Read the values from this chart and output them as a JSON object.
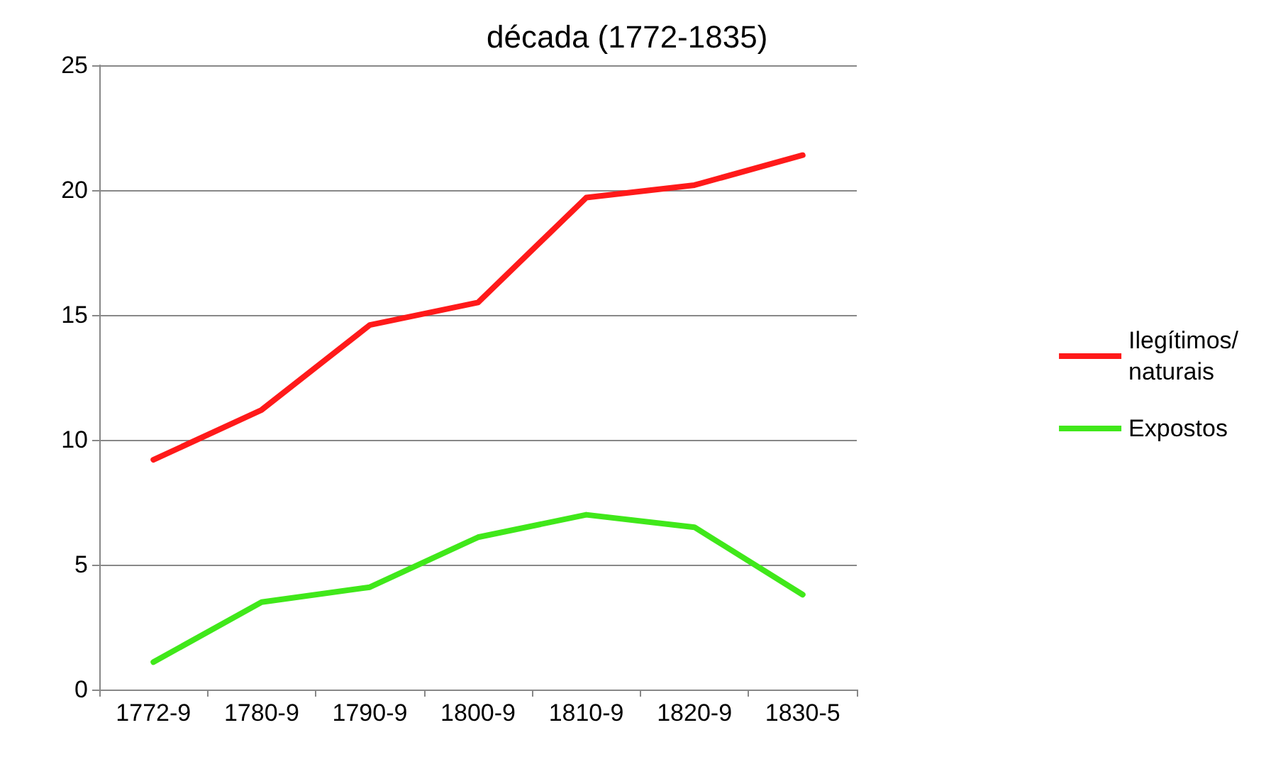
{
  "chart_data": {
    "type": "line",
    "title": "década (1772-1835)",
    "categories": [
      "1772-9",
      "1780-9",
      "1790-9",
      "1800-9",
      "1810-9",
      "1820-9",
      "1830-5"
    ],
    "series": [
      {
        "name": "Ilegítimos/\nnaturais",
        "color": "#ff1a1a",
        "values": [
          9.2,
          11.2,
          14.6,
          15.5,
          19.7,
          20.2,
          21.4
        ]
      },
      {
        "name": "Expostos",
        "color": "#40e81a",
        "values": [
          1.1,
          3.5,
          4.1,
          6.1,
          7.0,
          6.5,
          3.8
        ]
      }
    ],
    "ylim": [
      0,
      25
    ],
    "yticks": [
      0,
      5,
      10,
      15,
      20,
      25
    ],
    "grid": "y",
    "legend": "right",
    "marker": "none"
  }
}
